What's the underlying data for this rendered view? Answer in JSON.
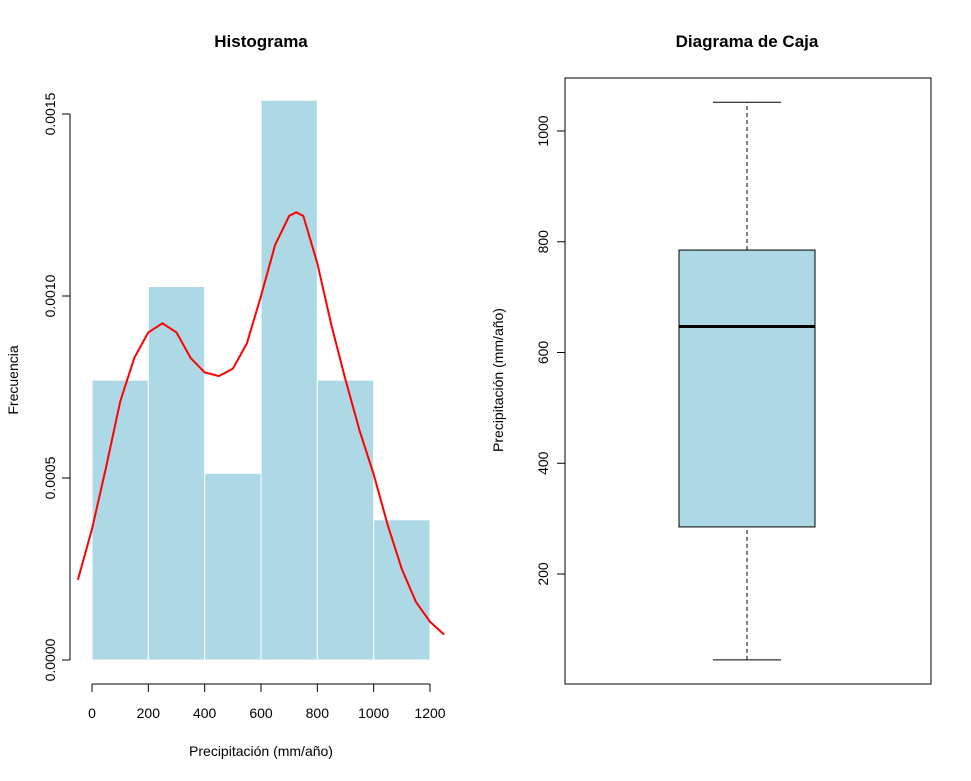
{
  "chart_data": [
    {
      "type": "bar",
      "subtype": "histogram_with_density",
      "title": "Histograma",
      "xlabel": "Precipitación (mm/año)",
      "ylabel": "Frecuencia",
      "bar_color": "#ADD8E6",
      "density_color": "#FF0000",
      "xlim": [
        -50,
        1250
      ],
      "ylim": [
        0,
        0.0016
      ],
      "x_ticks": [
        "0",
        "200",
        "400",
        "600",
        "800",
        "1000",
        "1200"
      ],
      "x_tick_values": [
        0,
        200,
        400,
        600,
        800,
        1000,
        1200
      ],
      "y_ticks": [
        "0.0000",
        "0.0005",
        "0.0010",
        "0.0015"
      ],
      "y_tick_values": [
        0,
        0.0005,
        0.001,
        0.0015
      ],
      "bins": [
        {
          "start": 0,
          "end": 200,
          "value": 0.000769
        },
        {
          "start": 200,
          "end": 400,
          "value": 0.001026
        },
        {
          "start": 400,
          "end": 600,
          "value": 0.000513
        },
        {
          "start": 600,
          "end": 800,
          "value": 0.001538
        },
        {
          "start": 800,
          "end": 1000,
          "value": 0.000769
        },
        {
          "start": 1000,
          "end": 1200,
          "value": 0.000385
        }
      ],
      "density": {
        "x": [
          -50,
          0,
          50,
          100,
          150,
          200,
          250,
          300,
          350,
          400,
          450,
          500,
          550,
          600,
          650,
          700,
          725,
          750,
          800,
          850,
          900,
          950,
          1000,
          1050,
          1100,
          1150,
          1200,
          1250
        ],
        "y": [
          0.00022,
          0.00036,
          0.00053,
          0.00071,
          0.00083,
          0.0009,
          0.000925,
          0.0009,
          0.00083,
          0.00079,
          0.00078,
          0.0008,
          0.00087,
          0.001,
          0.00114,
          0.00122,
          0.00123,
          0.00122,
          0.00109,
          0.00092,
          0.00077,
          0.00063,
          0.00051,
          0.00037,
          0.00025,
          0.00016,
          0.000105,
          7e-05
        ]
      }
    },
    {
      "type": "boxplot",
      "title": "Diagrama de Caja",
      "ylabel": "Precipitación (mm/año)",
      "box_color": "#ADD8E6",
      "ylim": [
        30,
        1090
      ],
      "y_ticks": [
        "200",
        "400",
        "600",
        "800",
        "1000"
      ],
      "y_tick_values": [
        200,
        400,
        600,
        800,
        1000
      ],
      "min": 45,
      "q1": 285,
      "median": 647,
      "q3": 785,
      "max": 1052
    }
  ]
}
